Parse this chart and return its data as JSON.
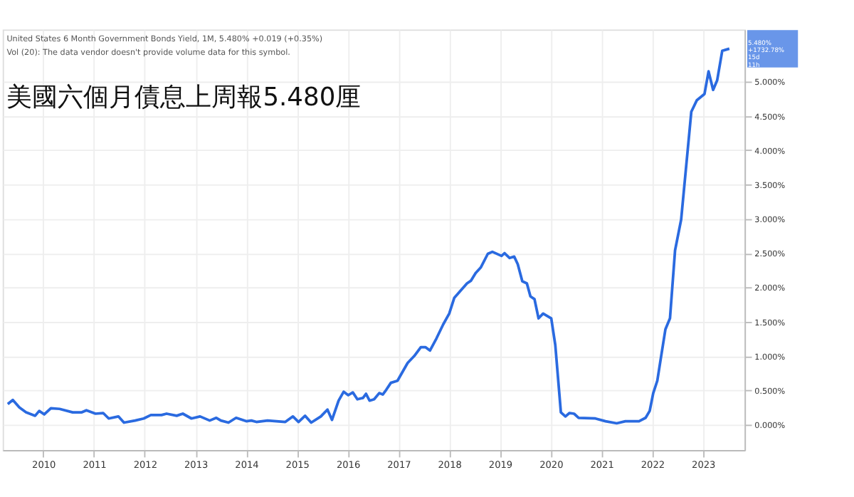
{
  "chart_data": {
    "type": "line",
    "title": "美國六個月債息上周報5.480厘",
    "annotations": [
      "United States 6 Month Government Bonds Yield, 1M, 5.480% +0.019 (+0.35%)",
      "Vol (20): The data vendor doesn't provide volume data for this symbol.",
      {
        "text": "5.480% +1732.78% 15d 11h",
        "x": 2023.52,
        "y": 5.48
      }
    ],
    "x": [
      2009.3,
      2009.4,
      2009.53,
      2009.66,
      2009.84,
      2009.92,
      2010.02,
      2010.15,
      2010.32,
      2010.58,
      2010.76,
      2010.85,
      2011.03,
      2011.18,
      2011.29,
      2011.48,
      2011.59,
      2011.81,
      2011.98,
      2012.12,
      2012.33,
      2012.43,
      2012.63,
      2012.75,
      2012.92,
      2013.09,
      2013.28,
      2013.41,
      2013.5,
      2013.65,
      2013.8,
      2014.0,
      2014.1,
      2014.2,
      2014.42,
      2014.77,
      2014.92,
      2015.03,
      2015.16,
      2015.28,
      2015.47,
      2015.6,
      2015.69,
      2015.82,
      2015.92,
      2016.01,
      2016.1,
      2016.19,
      2016.3,
      2016.36,
      2016.43,
      2016.52,
      2016.62,
      2016.69,
      2016.76,
      2016.85,
      2016.98,
      2017.18,
      2017.31,
      2017.44,
      2017.53,
      2017.62,
      2017.75,
      2017.88,
      2018.0,
      2018.1,
      2018.22,
      2018.35,
      2018.43,
      2018.52,
      2018.62,
      2018.76,
      2018.85,
      2019.03,
      2019.09,
      2019.19,
      2019.28,
      2019.35,
      2019.44,
      2019.53,
      2019.6,
      2019.68,
      2019.76,
      2019.85,
      2020.01,
      2020.09,
      2020.2,
      2020.29,
      2020.37,
      2020.46,
      2020.55,
      2020.88,
      2021.08,
      2021.3,
      2021.47,
      2021.74,
      2021.87,
      2021.95,
      2022.02,
      2022.1,
      2022.17,
      2022.26,
      2022.35,
      2022.45,
      2022.57,
      2022.77,
      2022.88,
      2023.03,
      2023.11,
      2023.2,
      2023.28,
      2023.38,
      2023.52
    ],
    "series": [
      {
        "color": "#2a6ae0",
        "values": [
          0.3,
          0.36,
          0.25,
          0.18,
          0.13,
          0.2,
          0.15,
          0.24,
          0.23,
          0.18,
          0.18,
          0.21,
          0.16,
          0.17,
          0.09,
          0.12,
          0.03,
          0.06,
          0.09,
          0.14,
          0.14,
          0.16,
          0.13,
          0.16,
          0.09,
          0.12,
          0.06,
          0.1,
          0.06,
          0.03,
          0.1,
          0.05,
          0.06,
          0.04,
          0.06,
          0.04,
          0.12,
          0.04,
          0.13,
          0.03,
          0.12,
          0.22,
          0.07,
          0.35,
          0.48,
          0.43,
          0.47,
          0.37,
          0.39,
          0.45,
          0.35,
          0.37,
          0.46,
          0.44,
          0.51,
          0.61,
          0.64,
          0.9,
          1.0,
          1.13,
          1.13,
          1.08,
          1.26,
          1.46,
          1.62,
          1.85,
          1.95,
          2.06,
          2.1,
          2.21,
          2.29,
          2.49,
          2.52,
          2.46,
          2.5,
          2.43,
          2.45,
          2.34,
          2.09,
          2.06,
          1.87,
          1.83,
          1.55,
          1.62,
          1.55,
          1.16,
          0.18,
          0.12,
          0.17,
          0.16,
          0.1,
          0.09,
          0.05,
          0.02,
          0.05,
          0.05,
          0.1,
          0.2,
          0.46,
          0.64,
          0.97,
          1.39,
          1.55,
          2.54,
          2.99,
          4.56,
          4.73,
          4.82,
          5.15,
          4.88,
          5.02,
          5.45,
          5.48
        ]
      }
    ],
    "xlim": [
      2009.2,
      2023.82
    ],
    "xticks": [
      2010,
      2011,
      2012,
      2013,
      2014,
      2015,
      2016,
      2017,
      2018,
      2019,
      2020,
      2021,
      2022,
      2023
    ],
    "ylim": [
      -0.37,
      5.76
    ],
    "yticks": [
      {
        "value": 0,
        "label": "0.000%"
      },
      {
        "value": 0.5,
        "label": "0.500%"
      },
      {
        "value": 1,
        "label": "1.000%"
      },
      {
        "value": 1.5,
        "label": "1.500%"
      },
      {
        "value": 2,
        "label": "2.000%"
      },
      {
        "value": 2.5,
        "label": "2.500%"
      },
      {
        "value": 3,
        "label": "3.000%"
      },
      {
        "value": 3.5,
        "label": "3.500%"
      },
      {
        "value": 4,
        "label": "4.000%"
      },
      {
        "value": 4.5,
        "label": "4.500%"
      },
      {
        "value": 5,
        "label": "5.000%"
      }
    ],
    "grid": true,
    "marker": "none",
    "line_style": "solid"
  }
}
